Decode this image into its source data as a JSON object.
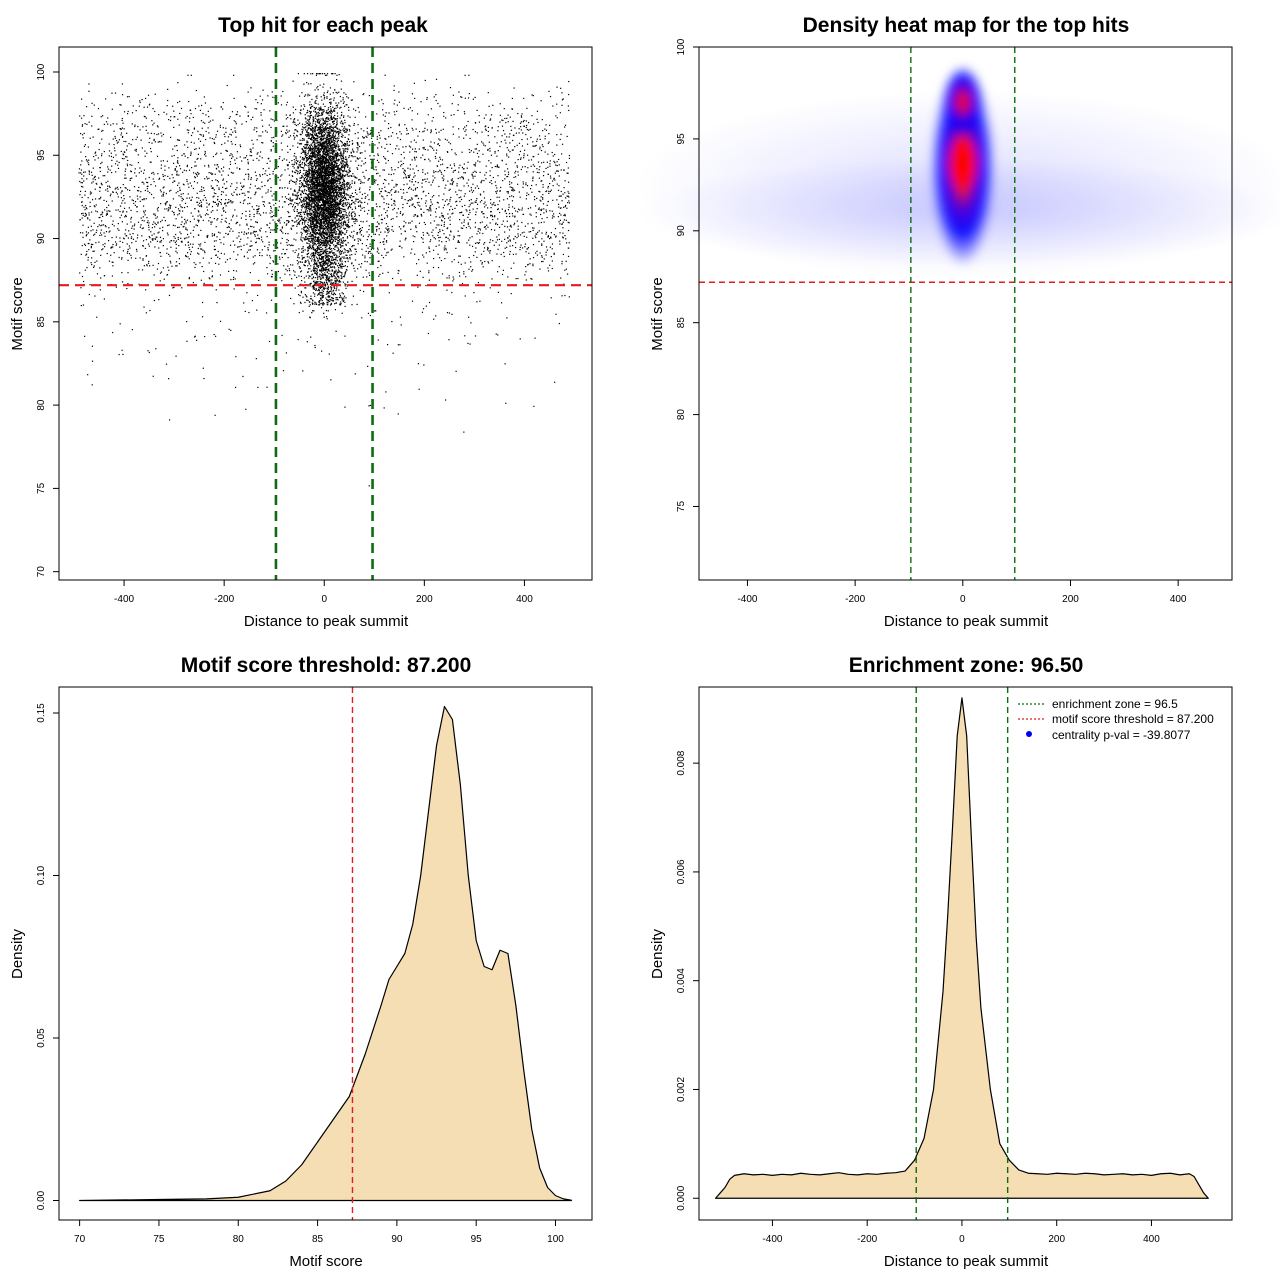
{
  "chart_data": [
    {
      "id": "scatter",
      "type": "scatter",
      "title": "Top hit for each peak",
      "xlabel": "Distance to peak summit",
      "ylabel": "Motif score",
      "xlim": [
        -530,
        535
      ],
      "ylim": [
        69.5,
        101.5
      ],
      "xticks": [
        -400,
        -200,
        0,
        200,
        400
      ],
      "yticks": [
        70,
        75,
        80,
        85,
        90,
        95,
        100
      ],
      "threshold": 87.2,
      "zone": [
        -96.5,
        96.5
      ],
      "points_background": 4200,
      "points_center": 5200,
      "colors": {
        "points": "#000000",
        "threshold": "#e11d1d",
        "zone": "#0a6e0a"
      }
    },
    {
      "id": "heatmap",
      "type": "heatmap",
      "title": "Density heat map for the top hits",
      "xlabel": "Distance to peak summit",
      "ylabel": "Motif score",
      "xlim": [
        -490,
        500
      ],
      "ylim": [
        71,
        100
      ],
      "xticks": [
        -400,
        -200,
        0,
        200,
        400
      ],
      "yticks": [
        75,
        80,
        85,
        90,
        95,
        100
      ],
      "threshold": 87.2,
      "zone": [
        -96.5,
        96.5
      ],
      "colors": {
        "low": "#ffffff",
        "mid": "#0000ff",
        "high": "#ff0000",
        "threshold": "#e11d1d",
        "zone": "#0a6e0a"
      }
    },
    {
      "id": "score-density",
      "type": "area",
      "title": "Motif score threshold: 87.200",
      "xlabel": "Motif score",
      "ylabel": "Density",
      "xlim": [
        68.7,
        102.3
      ],
      "ylim": [
        -0.006,
        0.158
      ],
      "xticks": [
        70,
        75,
        80,
        85,
        90,
        95,
        100
      ],
      "yticks": [
        0.0,
        0.05,
        0.1,
        0.15
      ],
      "ytick_labels": [
        "0.00",
        "0.05",
        "0.10",
        "0.15"
      ],
      "x": [
        70,
        75,
        78,
        80,
        82,
        83,
        84,
        85,
        86,
        87,
        88,
        89,
        89.5,
        90,
        90.5,
        91,
        91.5,
        92,
        92.5,
        93,
        93.5,
        94,
        94.5,
        95,
        95.5,
        96,
        96.5,
        97,
        97.5,
        98,
        98.5,
        99,
        99.5,
        100,
        100.5,
        101
      ],
      "values": [
        0.0,
        0.0003,
        0.0005,
        0.001,
        0.003,
        0.006,
        0.011,
        0.018,
        0.025,
        0.032,
        0.045,
        0.06,
        0.068,
        0.072,
        0.076,
        0.085,
        0.1,
        0.12,
        0.14,
        0.152,
        0.148,
        0.128,
        0.1,
        0.08,
        0.072,
        0.071,
        0.077,
        0.076,
        0.06,
        0.04,
        0.022,
        0.01,
        0.004,
        0.0015,
        0.0005,
        0.0001
      ],
      "threshold": 87.2,
      "colors": {
        "fill": "#f5deb3",
        "line": "#000000",
        "threshold": "#e11d1d"
      }
    },
    {
      "id": "distance-density",
      "type": "area",
      "title": "Enrichment zone: 96.50",
      "xlabel": "Distance to peak summit",
      "ylabel": "Density",
      "xlim": [
        -555,
        570
      ],
      "ylim": [
        -0.0004,
        0.0094
      ],
      "xticks": [
        -400,
        -200,
        0,
        200,
        400
      ],
      "yticks": [
        0.0,
        0.002,
        0.004,
        0.006,
        0.008
      ],
      "ytick_labels": [
        "0.000",
        "0.002",
        "0.004",
        "0.006",
        "0.008"
      ],
      "x": [
        -520,
        -510,
        -500,
        -490,
        -480,
        -460,
        -440,
        -420,
        -400,
        -380,
        -360,
        -340,
        -320,
        -300,
        -280,
        -260,
        -240,
        -220,
        -200,
        -180,
        -160,
        -140,
        -120,
        -100,
        -80,
        -60,
        -40,
        -30,
        -20,
        -10,
        0,
        10,
        20,
        30,
        40,
        60,
        80,
        100,
        120,
        140,
        160,
        180,
        200,
        220,
        240,
        260,
        280,
        300,
        320,
        340,
        360,
        380,
        400,
        420,
        440,
        460,
        480,
        490,
        500,
        510,
        520
      ],
      "values": [
        0.0,
        0.0001,
        0.0002,
        0.00035,
        0.00042,
        0.00045,
        0.00043,
        0.00044,
        0.00042,
        0.00044,
        0.00043,
        0.00046,
        0.00044,
        0.00043,
        0.00045,
        0.00047,
        0.00044,
        0.00043,
        0.00045,
        0.00044,
        0.00046,
        0.00047,
        0.0005,
        0.0007,
        0.0011,
        0.002,
        0.0038,
        0.0052,
        0.0068,
        0.0085,
        0.0092,
        0.0085,
        0.0066,
        0.0048,
        0.0035,
        0.002,
        0.001,
        0.0007,
        0.00052,
        0.00046,
        0.00045,
        0.00044,
        0.00046,
        0.00045,
        0.00044,
        0.00046,
        0.00045,
        0.00043,
        0.00044,
        0.00045,
        0.00043,
        0.00044,
        0.00042,
        0.00045,
        0.00046,
        0.00043,
        0.00045,
        0.0004,
        0.00025,
        0.0001,
        0.0
      ],
      "zone": [
        -96.5,
        96.5
      ],
      "legend": [
        {
          "label": "enrichment zone = 96.5",
          "style": "dotted-line",
          "color": "#0a6e0a"
        },
        {
          "label": "motif score threshold = 87.200",
          "style": "dotted-line",
          "color": "#e11d1d"
        },
        {
          "label": "centrality p-val = -39.8077",
          "style": "dot",
          "color": "#0000ff"
        }
      ],
      "legend_position": "top-right",
      "colors": {
        "fill": "#f5deb3",
        "line": "#000000",
        "zone": "#0a6e0a"
      }
    }
  ]
}
